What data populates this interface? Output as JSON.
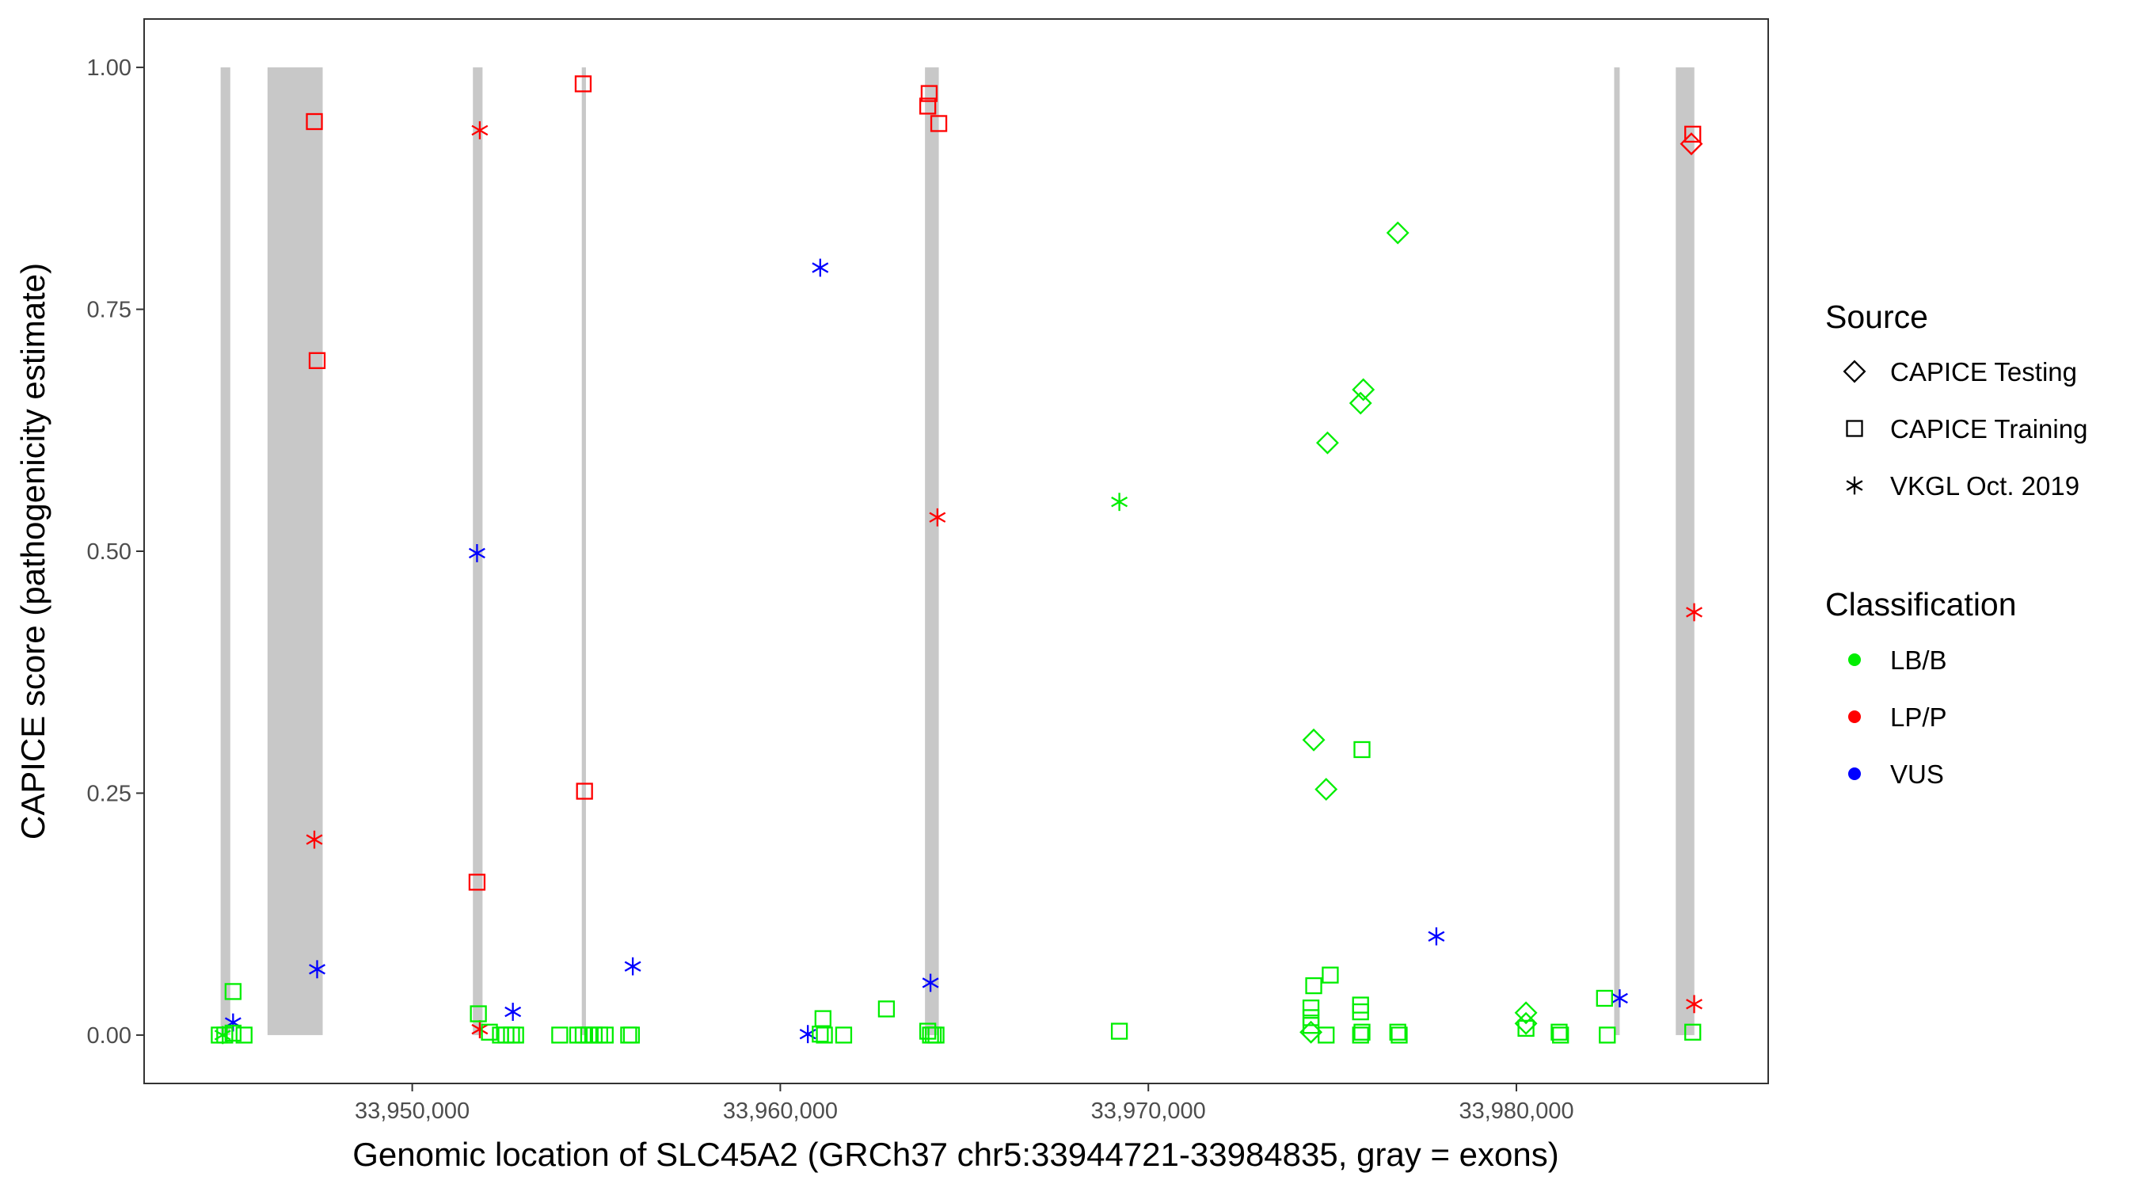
{
  "chart_data": {
    "type": "scatter",
    "xlabel": "Genomic location of SLC45A2 (GRCh37 chr5:33944721-33984835, gray = exons)",
    "ylabel": "CAPICE score (pathogenicity estimate)",
    "xlim": [
      33942715,
      33986841
    ],
    "ylim": [
      -0.05,
      1.05
    ],
    "x_ticks": [
      33950000,
      33960000,
      33970000,
      33980000
    ],
    "x_tick_labels": [
      "33,950,000",
      "33,960,000",
      "33,970,000",
      "33,980,000"
    ],
    "y_ticks": [
      0,
      0.25,
      0.5,
      0.75,
      1.0
    ],
    "y_tick_labels": [
      "0.00",
      "0.25",
      "0.50",
      "0.75",
      "1.00"
    ],
    "grid": false,
    "exons": [
      [
        33944794,
        33945056
      ],
      [
        33946068,
        33947566
      ],
      [
        33951648,
        33951910
      ],
      [
        33954606,
        33954719
      ],
      [
        33963931,
        33964306
      ],
      [
        33982656,
        33982806
      ],
      [
        33984330,
        33984835
      ]
    ],
    "exon_score_range": [
      0,
      1
    ],
    "exon_color": "#C8C8C8",
    "legend": {
      "placement": "right",
      "source_title": "Source",
      "source_items": [
        {
          "label": "CAPICE Testing",
          "shape": "diamond"
        },
        {
          "label": "CAPICE Training",
          "shape": "square"
        },
        {
          "label": "VKGL Oct. 2019",
          "shape": "asterisk"
        }
      ],
      "class_title": "Classification",
      "class_items": [
        {
          "label": "LB/B",
          "color": "#00EE00"
        },
        {
          "label": "LP/P",
          "color": "#FF0000"
        },
        {
          "label": "VUS",
          "color": "#0000FF"
        }
      ]
    },
    "series": [
      {
        "source": "CAPICE Training",
        "classification": "LP/P",
        "points": [
          [
            33947341,
            0.944
          ],
          [
            33947416,
            0.697
          ],
          [
            33951760,
            0.158
          ],
          [
            33954644,
            0.983
          ],
          [
            33954681,
            0.252
          ],
          [
            33964044,
            0.973
          ],
          [
            33964006,
            0.96
          ],
          [
            33964306,
            0.942
          ],
          [
            33984791,
            0.931
          ]
        ]
      },
      {
        "source": "CAPICE Testing",
        "classification": "LP/P",
        "points": [
          [
            33984754,
            0.921
          ]
        ]
      },
      {
        "source": "VKGL Oct. 2019",
        "classification": "LP/P",
        "points": [
          [
            33947341,
            0.202
          ],
          [
            33951835,
            0.935
          ],
          [
            33951835,
            0.006
          ],
          [
            33964269,
            0.535
          ],
          [
            33984830,
            0.437
          ],
          [
            33984830,
            0.032
          ]
        ]
      },
      {
        "source": "VKGL Oct. 2019",
        "classification": "VUS",
        "points": [
          [
            33945132,
            0.013
          ],
          [
            33947416,
            0.068
          ],
          [
            33951760,
            0.498
          ],
          [
            33952734,
            0.024
          ],
          [
            33955992,
            0.071
          ],
          [
            33961085,
            0.793
          ],
          [
            33960748,
            0.001
          ],
          [
            33964081,
            0.054
          ],
          [
            33977825,
            0.102
          ],
          [
            33982806,
            0.038
          ]
        ]
      },
      {
        "source": "VKGL Oct. 2019",
        "classification": "LB/B",
        "points": [
          [
            33969212,
            0.551
          ],
          [
            33944850,
            0.0
          ]
        ]
      },
      {
        "source": "CAPICE Testing",
        "classification": "LB/B",
        "points": [
          [
            33976777,
            0.829
          ],
          [
            33975841,
            0.667
          ],
          [
            33975766,
            0.653
          ],
          [
            33974867,
            0.612
          ],
          [
            33974493,
            0.305
          ],
          [
            33974830,
            0.254
          ],
          [
            33974418,
            0.003
          ],
          [
            33980260,
            0.023
          ],
          [
            33980260,
            0.012
          ]
        ]
      },
      {
        "source": "CAPICE Training",
        "classification": "LB/B",
        "points": [
          [
            33945132,
            0.045
          ],
          [
            33944757,
            0.0
          ],
          [
            33944906,
            0.0
          ],
          [
            33945132,
            0.002
          ],
          [
            33945431,
            0.0
          ],
          [
            33951797,
            0.022
          ],
          [
            33952097,
            0.003
          ],
          [
            33952397,
            0.0
          ],
          [
            33952547,
            0.0
          ],
          [
            33952697,
            0.0
          ],
          [
            33952809,
            0.0
          ],
          [
            33954007,
            0.0
          ],
          [
            33954494,
            0.0
          ],
          [
            33954644,
            0.0
          ],
          [
            33954794,
            0.0
          ],
          [
            33954944,
            0.0
          ],
          [
            33955093,
            0.0
          ],
          [
            33955243,
            0.0
          ],
          [
            33955880,
            0.0
          ],
          [
            33955955,
            0.0
          ],
          [
            33961160,
            0.017
          ],
          [
            33961085,
            0.001
          ],
          [
            33961198,
            0.0
          ],
          [
            33961722,
            0.0
          ],
          [
            33962883,
            0.027
          ],
          [
            33964006,
            0.004
          ],
          [
            33964081,
            0.0
          ],
          [
            33964156,
            0.0
          ],
          [
            33964231,
            0.0
          ],
          [
            33969212,
            0.004
          ],
          [
            33974493,
            0.051
          ],
          [
            33974942,
            0.062
          ],
          [
            33974418,
            0.028
          ],
          [
            33974418,
            0.018
          ],
          [
            33974418,
            0.01
          ],
          [
            33974830,
            0.0
          ],
          [
            33975766,
            0.031
          ],
          [
            33975766,
            0.024
          ],
          [
            33975766,
            0.0
          ],
          [
            33975804,
            0.003
          ],
          [
            33975804,
            0.295
          ],
          [
            33976777,
            0.003
          ],
          [
            33976815,
            0.0
          ],
          [
            33980260,
            0.007
          ],
          [
            33981161,
            0.003
          ],
          [
            33981198,
            0.0
          ],
          [
            33982469,
            0.0
          ],
          [
            33982394,
            0.038
          ],
          [
            33984791,
            0.003
          ]
        ]
      }
    ]
  }
}
